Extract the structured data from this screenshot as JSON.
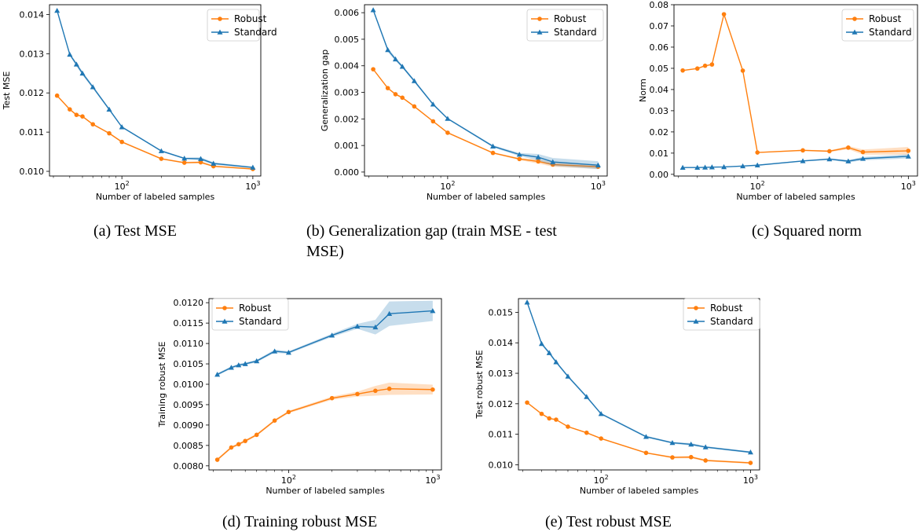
{
  "colors": {
    "robust": "#ff7f0e",
    "standard": "#1f77b4"
  },
  "chart_data": [
    {
      "type": "line",
      "caption": "(a)  Test MSE",
      "xlabel": "Number of labeled samples",
      "ylabel": "Test MSE",
      "xscale": "log",
      "xlim": [
        28,
        1150
      ],
      "ylim": [
        0.00988,
        0.01425
      ],
      "yticks": [
        0.01,
        0.011,
        0.012,
        0.013,
        0.014
      ],
      "yfmt": 3,
      "xtick_labels": [
        {
          "v": 100,
          "base": "10",
          "exp": "2"
        },
        {
          "v": 1000,
          "base": "10",
          "exp": "3"
        }
      ],
      "legend_position": "top-right",
      "grid": false,
      "x": [
        32,
        40,
        45,
        50,
        60,
        80,
        100,
        200,
        300,
        400,
        500,
        1000
      ],
      "series": [
        {
          "name": "Robust",
          "marker": "circle",
          "values": [
            0.01193,
            0.01158,
            0.01144,
            0.0114,
            0.0112,
            0.01097,
            0.01075,
            0.01032,
            0.01022,
            0.01023,
            0.01013,
            0.01006
          ],
          "band": [
            2e-05,
            2e-05,
            2e-05,
            2e-05,
            2e-05,
            2e-05,
            2e-05,
            2e-05,
            2e-05,
            3e-05,
            2e-05,
            2e-05
          ]
        },
        {
          "name": "Standard",
          "marker": "triangle",
          "values": [
            0.0141,
            0.01298,
            0.01273,
            0.0125,
            0.01215,
            0.01158,
            0.01113,
            0.01052,
            0.01033,
            0.01032,
            0.0102,
            0.0101
          ],
          "band": [
            3e-05,
            3e-05,
            5e-05,
            5e-05,
            4e-05,
            3e-05,
            2e-05,
            2e-05,
            2e-05,
            4e-05,
            3e-05,
            2e-05
          ]
        }
      ]
    },
    {
      "type": "line",
      "caption": "(b)  Generalization gap (train MSE - test",
      "caption2": "MSE)",
      "xlabel": "Number of labeled samples",
      "ylabel": "Generalization gap",
      "xscale": "log",
      "xlim": [
        28,
        1150
      ],
      "ylim": [
        -0.00015,
        0.0063
      ],
      "yticks": [
        0.0,
        0.001,
        0.002,
        0.003,
        0.004,
        0.005,
        0.006
      ],
      "yfmt": 3,
      "xtick_labels": [
        {
          "v": 100,
          "base": "10",
          "exp": "2"
        },
        {
          "v": 1000,
          "base": "10",
          "exp": "3"
        }
      ],
      "legend_position": "top-right",
      "grid": false,
      "x": [
        32,
        40,
        45,
        50,
        60,
        80,
        100,
        200,
        300,
        400,
        500,
        1000
      ],
      "series": [
        {
          "name": "Robust",
          "marker": "circle",
          "values": [
            0.00387,
            0.00316,
            0.00293,
            0.0028,
            0.00247,
            0.00191,
            0.00148,
            0.00072,
            0.00049,
            0.0004,
            0.00028,
            0.0002
          ],
          "band": [
            3e-05,
            3e-05,
            3e-05,
            3e-05,
            3e-05,
            3e-05,
            3e-05,
            3e-05,
            4e-05,
            8e-05,
            8e-05,
            8e-05
          ]
        },
        {
          "name": "Standard",
          "marker": "triangle",
          "values": [
            0.0061,
            0.0046,
            0.00425,
            0.00397,
            0.00343,
            0.00255,
            0.00201,
            0.00097,
            0.00066,
            0.00056,
            0.00038,
            0.00026
          ],
          "band": [
            5e-05,
            8e-05,
            7e-05,
            5e-05,
            5e-05,
            4e-05,
            3e-05,
            4e-05,
            6e-05,
            0.00012,
            0.00015,
            0.00015
          ]
        }
      ]
    },
    {
      "type": "line",
      "caption": "(c)  Squared norm",
      "xlabel": "Number of labeled samples",
      "ylabel": "Norm",
      "xscale": "log",
      "xlim": [
        28,
        1150
      ],
      "ylim": [
        -0.0008,
        0.08
      ],
      "yticks": [
        0.0,
        0.01,
        0.02,
        0.03,
        0.04,
        0.05,
        0.06,
        0.07,
        0.08
      ],
      "yfmt": 2,
      "xtick_labels": [
        {
          "v": 100,
          "base": "10",
          "exp": "2"
        },
        {
          "v": 1000,
          "base": "10",
          "exp": "3"
        }
      ],
      "legend_position": "top-right",
      "grid": false,
      "x": [
        32,
        40,
        45,
        50,
        60,
        80,
        100,
        200,
        300,
        400,
        500,
        1000
      ],
      "series": [
        {
          "name": "Robust",
          "marker": "circle",
          "values": [
            0.049,
            0.0499,
            0.0512,
            0.0518,
            0.0755,
            0.0489,
            0.0103,
            0.0113,
            0.0109,
            0.0126,
            0.0105,
            0.0111
          ],
          "band": [
            0.0002,
            0.0002,
            0.0002,
            0.0002,
            0.0002,
            0.0002,
            0.0002,
            0.0003,
            0.0004,
            0.0008,
            0.0012,
            0.0018
          ]
        },
        {
          "name": "Standard",
          "marker": "triangle",
          "values": [
            0.0032,
            0.0032,
            0.0033,
            0.0034,
            0.0035,
            0.0039,
            0.0043,
            0.0063,
            0.0072,
            0.0062,
            0.0074,
            0.0085
          ],
          "band": [
            0.0001,
            0.0001,
            0.0001,
            0.0001,
            0.0001,
            0.0001,
            0.0002,
            0.0003,
            0.0004,
            0.0006,
            0.0008,
            0.001
          ]
        }
      ]
    },
    {
      "type": "line",
      "caption": "(d)  Training robust MSE",
      "xlabel": "Number of labeled samples",
      "ylabel": "Training robust MSE",
      "xscale": "log",
      "xlim": [
        28,
        1150
      ],
      "ylim": [
        0.0079,
        0.0121
      ],
      "yticks": [
        0.008,
        0.0085,
        0.009,
        0.0095,
        0.01,
        0.0105,
        0.011,
        0.0115,
        0.012
      ],
      "yfmt": 4,
      "xtick_labels": [
        {
          "v": 100,
          "base": "10",
          "exp": "2"
        },
        {
          "v": 1000,
          "base": "10",
          "exp": "3"
        }
      ],
      "legend_position": "top-left",
      "grid": false,
      "x": [
        32,
        40,
        45,
        50,
        60,
        80,
        100,
        200,
        300,
        400,
        500,
        1000
      ],
      "series": [
        {
          "name": "Robust",
          "marker": "circle",
          "values": [
            0.00815,
            0.00845,
            0.00853,
            0.00861,
            0.00876,
            0.00911,
            0.00932,
            0.00966,
            0.00976,
            0.00984,
            0.00989,
            0.00987
          ],
          "band": [
            3e-05,
            3e-05,
            3e-05,
            3e-05,
            3e-05,
            3e-05,
            3e-05,
            4e-05,
            6e-05,
            0.00012,
            0.00015,
            0.00012
          ]
        },
        {
          "name": "Standard",
          "marker": "triangle",
          "values": [
            0.01024,
            0.01041,
            0.01047,
            0.0105,
            0.01057,
            0.01081,
            0.01078,
            0.0112,
            0.01142,
            0.0114,
            0.01173,
            0.0118
          ],
          "band": [
            3e-05,
            3e-05,
            3e-05,
            3e-05,
            3e-05,
            4e-05,
            3e-05,
            4e-05,
            6e-05,
            0.00018,
            0.0003,
            0.00025
          ]
        }
      ]
    },
    {
      "type": "line",
      "caption": "(e)  Test robust MSE",
      "xlabel": "Number of labeled samples",
      "ylabel": "Test robust MSE",
      "xscale": "log",
      "xlim": [
        28,
        1150
      ],
      "ylim": [
        0.00983,
        0.01545
      ],
      "yticks": [
        0.01,
        0.011,
        0.012,
        0.013,
        0.014,
        0.015
      ],
      "yfmt": 3,
      "xtick_labels": [
        {
          "v": 100,
          "base": "10",
          "exp": "2"
        },
        {
          "v": 1000,
          "base": "10",
          "exp": "3"
        }
      ],
      "legend_position": "top-right",
      "grid": false,
      "x": [
        32,
        40,
        45,
        50,
        60,
        80,
        100,
        200,
        300,
        400,
        500,
        1000
      ],
      "series": [
        {
          "name": "Robust",
          "marker": "circle",
          "values": [
            0.01204,
            0.01167,
            0.01152,
            0.01148,
            0.01125,
            0.01105,
            0.01086,
            0.01039,
            0.01024,
            0.01025,
            0.01014,
            0.01006
          ],
          "band": [
            2e-05,
            2e-05,
            2e-05,
            2e-05,
            2e-05,
            2e-05,
            2e-05,
            2e-05,
            3e-05,
            4e-05,
            3e-05,
            3e-05
          ]
        },
        {
          "name": "Standard",
          "marker": "triangle",
          "values": [
            0.01533,
            0.01397,
            0.01367,
            0.01337,
            0.0129,
            0.01223,
            0.01167,
            0.01092,
            0.01072,
            0.01067,
            0.01058,
            0.01041
          ],
          "band": [
            4e-05,
            4e-05,
            5e-05,
            4e-05,
            4e-05,
            4e-05,
            3e-05,
            3e-05,
            3e-05,
            4e-05,
            3e-05,
            3e-05
          ]
        }
      ]
    }
  ]
}
